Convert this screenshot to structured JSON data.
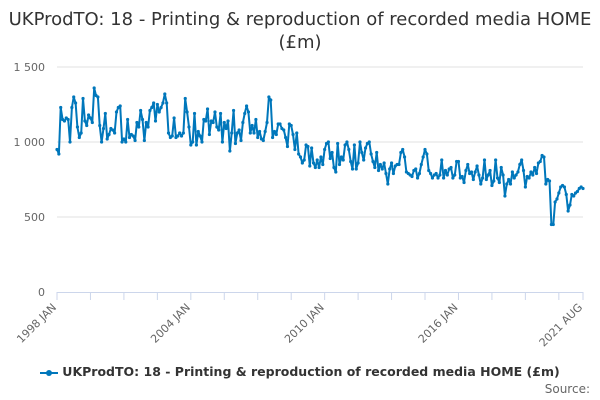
{
  "chart_data": {
    "type": "line",
    "title": "UKProdTO: 18 - Printing & reproduction of recorded media HOME (£m)",
    "xlabel": "",
    "ylabel": "",
    "x_start": "1998 JAN",
    "x_end": "2021 AUG",
    "frequency": "monthly",
    "x_tick_labels": [
      "1998 JAN",
      "2004 JAN",
      "2010 JAN",
      "2016 JAN",
      "2021 AUG"
    ],
    "y_ticks": [
      0,
      500,
      1000,
      1500
    ],
    "y_tick_labels": [
      "0",
      "500",
      "1 000",
      "1 500"
    ],
    "ylim": [
      0,
      1500
    ],
    "grid": "horizontal",
    "legend_position": "bottom",
    "series": [
      {
        "name": "UKProdTO: 18 - Printing & reproduction of recorded media HOME (£m)",
        "color": "#0077bb",
        "values": [
          950,
          920,
          1230,
          1150,
          1140,
          1160,
          1150,
          1000,
          1230,
          1300,
          1260,
          1100,
          1030,
          1060,
          1290,
          1140,
          1110,
          1180,
          1160,
          1130,
          1360,
          1310,
          1300,
          1110,
          1000,
          1090,
          1190,
          1020,
          1050,
          1090,
          1080,
          1060,
          1200,
          1230,
          1240,
          1000,
          1020,
          1000,
          1150,
          1030,
          1050,
          1040,
          1010,
          1130,
          1100,
          1210,
          1150,
          1010,
          1130,
          1100,
          1210,
          1230,
          1260,
          1140,
          1250,
          1200,
          1230,
          1260,
          1320,
          1260,
          1060,
          1030,
          1040,
          1160,
          1030,
          1040,
          1060,
          1040,
          1060,
          1290,
          1200,
          1100,
          980,
          1000,
          1190,
          980,
          1070,
          1040,
          1000,
          1150,
          1140,
          1220,
          1050,
          1140,
          1130,
          1200,
          1100,
          1080,
          1190,
          1000,
          1130,
          1090,
          1140,
          940,
          1060,
          1210,
          990,
          1060,
          1080,
          1010,
          1130,
          1190,
          1240,
          1200,
          1060,
          1110,
          1060,
          1150,
          1030,
          1070,
          1020,
          1010,
          1070,
          1130,
          1300,
          1280,
          1030,
          1070,
          1050,
          1120,
          1120,
          1090,
          1080,
          1030,
          970,
          1120,
          1110,
          1050,
          950,
          1060,
          920,
          900,
          860,
          880,
          980,
          970,
          840,
          960,
          860,
          830,
          880,
          830,
          900,
          850,
          950,
          990,
          1000,
          890,
          930,
          830,
          800,
          990,
          850,
          900,
          880,
          980,
          1000,
          950,
          870,
          820,
          980,
          820,
          860,
          1000,
          930,
          880,
          960,
          990,
          1000,
          920,
          870,
          830,
          930,
          810,
          850,
          820,
          860,
          790,
          720,
          820,
          860,
          790,
          840,
          850,
          850,
          930,
          950,
          900,
          800,
          790,
          780,
          770,
          810,
          820,
          760,
          790,
          850,
          900,
          950,
          920,
          810,
          790,
          760,
          780,
          790,
          760,
          780,
          880,
          760,
          810,
          780,
          820,
          830,
          760,
          780,
          870,
          870,
          760,
          770,
          730,
          810,
          850,
          790,
          800,
          750,
          800,
          840,
          780,
          720,
          760,
          880,
          750,
          780,
          810,
          710,
          740,
          880,
          760,
          730,
          830,
          780,
          640,
          720,
          750,
          720,
          800,
          760,
          780,
          800,
          850,
          880,
          810,
          700,
          770,
          760,
          800,
          780,
          830,
          790,
          860,
          870,
          910,
          900,
          720,
          750,
          740,
          450,
          450,
          600,
          620,
          660,
          700,
          710,
          700,
          650,
          540,
          580,
          650,
          640,
          660,
          670,
          690,
          700,
          690
        ]
      }
    ]
  },
  "source_label": "Source:"
}
